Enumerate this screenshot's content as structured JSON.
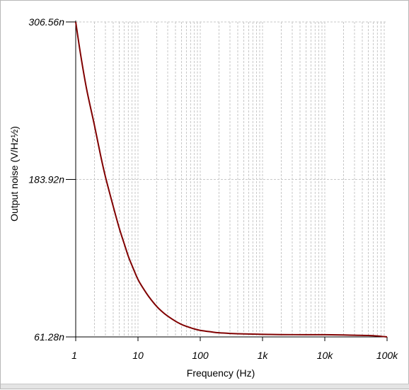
{
  "chart_data": {
    "type": "line",
    "title": "",
    "xlabel": "Frequency (Hz)",
    "ylabel": "Output noise (V/Hz½)",
    "x_scale": "log",
    "xlim": [
      1,
      100000
    ],
    "ylim": [
      61.28,
      306.56
    ],
    "y_unit": "nV/Hz½",
    "x_ticks": [
      {
        "value": 1,
        "label": "1"
      },
      {
        "value": 10,
        "label": "10"
      },
      {
        "value": 100,
        "label": "100"
      },
      {
        "value": 1000,
        "label": "1k"
      },
      {
        "value": 10000,
        "label": "10k"
      },
      {
        "value": 100000,
        "label": "100k"
      }
    ],
    "y_ticks": [
      {
        "value": 61.28,
        "label": "61.28n"
      },
      {
        "value": 183.92,
        "label": "183.92n"
      },
      {
        "value": 306.56,
        "label": "306.56n"
      }
    ],
    "grid": true,
    "grid_color": "#c8c8c8",
    "series": [
      {
        "color": "#800000",
        "x": [
          1,
          1.2,
          1.5,
          2,
          2.5,
          3,
          4,
          5,
          6,
          7,
          8,
          10,
          12,
          15,
          20,
          25,
          30,
          40,
          50,
          60,
          80,
          100,
          150,
          200,
          300,
          500,
          1000,
          2000,
          5000,
          10000,
          20000,
          30000,
          50000,
          70000,
          100000
        ],
        "values": [
          306.56,
          281,
          254,
          226,
          203,
          186,
          163,
          146,
          134,
          124,
          117,
          106,
          99.5,
          92.5,
          85,
          80.5,
          77.5,
          73.5,
          71,
          69.5,
          67.5,
          66.4,
          65.2,
          64.5,
          64,
          63.6,
          63.3,
          63.1,
          63,
          63,
          62.8,
          62.6,
          62.4,
          62,
          61.28
        ]
      }
    ]
  }
}
